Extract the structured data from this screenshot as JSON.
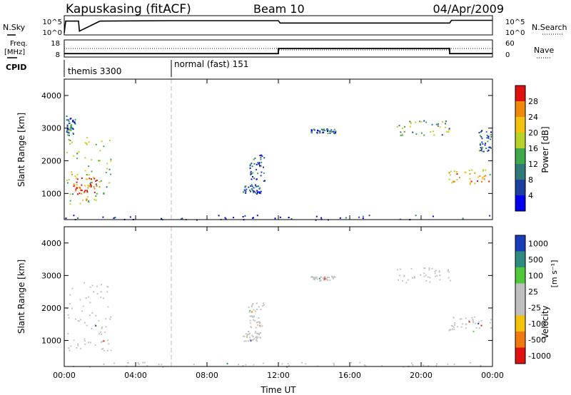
{
  "header": {
    "title": "Kapuskasing (fitACF)",
    "beam": "Beam 10",
    "date": "04/Apr/2009"
  },
  "summary_labels": {
    "nsky": "N.Sky",
    "nsearch": "N.Search",
    "freq": "Freq.",
    "freq_unit": "[MHz]",
    "nave": "Nave",
    "cpid": "CPID"
  },
  "summary_ticks": {
    "noise_left": [
      "10^5",
      "10^0"
    ],
    "noise_right": [
      "10^5",
      "10^0"
    ],
    "freq_left": [
      "18",
      "8"
    ],
    "freq_right": [
      "60",
      "0"
    ]
  },
  "cpid_segments": [
    {
      "label": "themis 3300",
      "start_hour": 0.0
    },
    {
      "label": "normal (fast) 151",
      "start_hour": 6.0
    }
  ],
  "time_axis": {
    "label": "Time UT",
    "ticks": [
      "00:00",
      "04:00",
      "08:00",
      "12:00",
      "16:00",
      "20:00",
      "00:00"
    ],
    "tick_hours": [
      0,
      4,
      8,
      12,
      16,
      20,
      24
    ]
  },
  "range_axis": {
    "label": "Slant Range [km]",
    "ticks": [
      "1000",
      "2000",
      "3000",
      "4000"
    ],
    "tick_values": [
      1000,
      2000,
      3000,
      4000
    ],
    "range": [
      200,
      4500
    ]
  },
  "power_scale": {
    "label": "Power [dB]",
    "ticks": [
      "4",
      "8",
      "12",
      "16",
      "20",
      "24",
      "28"
    ],
    "colors": [
      "#0000ee",
      "#1c3fa0",
      "#2f7a78",
      "#3fa84a",
      "#b8d22a",
      "#f2c20e",
      "#f08a0a",
      "#e01010"
    ]
  },
  "velocity_scale": {
    "label": "Velocity",
    "unit": "[m s⁻¹]",
    "ticks": [
      "1000",
      "500",
      "100",
      "25",
      "-25",
      "-100",
      "-500",
      "-1000"
    ],
    "colors": [
      "#1a3cb8",
      "#2f8a80",
      "#4fc83a",
      "#bfbfbf",
      "#bfbfbf",
      "#f5c20a",
      "#f07a10",
      "#e01010"
    ]
  },
  "chart_data": [
    {
      "type": "line",
      "title": "N.Sky / N.Search",
      "x_unit": "hour UT",
      "y_scale": "log",
      "ylim": [
        "10^0",
        "10^5"
      ],
      "series": [
        {
          "name": "N.Sky",
          "x": [
            0,
            0.08,
            0.8,
            0.85,
            2,
            6,
            10,
            12,
            12.1,
            16,
            20,
            21.6,
            21.7,
            24
          ],
          "y_level": [
            0.1,
            0.72,
            0.72,
            0.2,
            0.72,
            0.74,
            0.74,
            0.74,
            0.62,
            0.62,
            0.62,
            0.62,
            0.76,
            0.76
          ]
        }
      ]
    },
    {
      "type": "line",
      "title": "Freq. / Nave",
      "x_unit": "hour UT",
      "ylim": [
        8,
        18
      ],
      "y2lim": [
        0,
        60
      ],
      "series": [
        {
          "name": "Freq.",
          "x": [
            0,
            12,
            12,
            21.6,
            21.6,
            24
          ],
          "y": [
            10,
            10,
            13,
            13,
            10,
            10
          ]
        },
        {
          "name": "Nave",
          "x": [
            0,
            12,
            12,
            21.6,
            21.6,
            24
          ],
          "y": [
            30,
            30,
            25,
            25,
            30,
            30
          ]
        }
      ]
    },
    {
      "type": "heatmap",
      "title": "Power",
      "x_unit": "hour UT",
      "xlim": [
        0,
        24
      ],
      "ylim": [
        200,
        4500
      ],
      "y_unit": "km",
      "regions": [
        {
          "t0": 0.1,
          "t1": 2.6,
          "r0": 650,
          "r1": 2800,
          "level": 0.55
        },
        {
          "t0": 0.5,
          "t1": 1.8,
          "r0": 1000,
          "r1": 1500,
          "level": 0.95
        },
        {
          "t0": 0.1,
          "t1": 0.6,
          "r0": 2800,
          "r1": 3400,
          "level": 0.3
        },
        {
          "t0": 10.3,
          "t1": 11.2,
          "r0": 1400,
          "r1": 2200,
          "level": 0.25
        },
        {
          "t0": 10.0,
          "t1": 11.0,
          "r0": 1000,
          "r1": 1300,
          "level": 0.2
        },
        {
          "t0": 13.8,
          "t1": 15.2,
          "r0": 2850,
          "r1": 3000,
          "level": 0.25
        },
        {
          "t0": 18.6,
          "t1": 21.6,
          "r0": 2800,
          "r1": 3250,
          "level": 0.45
        },
        {
          "t0": 21.5,
          "t1": 24.0,
          "r0": 1300,
          "r1": 1750,
          "level": 0.7
        },
        {
          "t0": 23.2,
          "t1": 23.9,
          "r0": 2300,
          "r1": 3000,
          "level": 0.3
        },
        {
          "t0": 0.0,
          "t1": 24.0,
          "r0": 200,
          "r1": 350,
          "level": 0.15
        }
      ]
    },
    {
      "type": "heatmap",
      "title": "Velocity",
      "x_unit": "hour UT",
      "xlim": [
        0,
        24
      ],
      "ylim": [
        200,
        4500
      ],
      "y_unit": "km",
      "regions": [
        {
          "t0": 0.1,
          "t1": 2.6,
          "r0": 650,
          "r1": 2800,
          "level": 0.5
        },
        {
          "t0": 10.3,
          "t1": 11.2,
          "r0": 1400,
          "r1": 2200,
          "level": 0.5
        },
        {
          "t0": 10.0,
          "t1": 11.0,
          "r0": 1000,
          "r1": 1300,
          "level": 0.5
        },
        {
          "t0": 13.8,
          "t1": 15.2,
          "r0": 2850,
          "r1": 3000,
          "level": 0.5
        },
        {
          "t0": 18.6,
          "t1": 21.6,
          "r0": 2800,
          "r1": 3250,
          "level": 0.5
        },
        {
          "t0": 21.5,
          "t1": 24.0,
          "r0": 1300,
          "r1": 1750,
          "level": 0.5
        },
        {
          "t0": 0.0,
          "t1": 24.0,
          "r0": 200,
          "r1": 350,
          "level": 0.5
        }
      ]
    }
  ]
}
